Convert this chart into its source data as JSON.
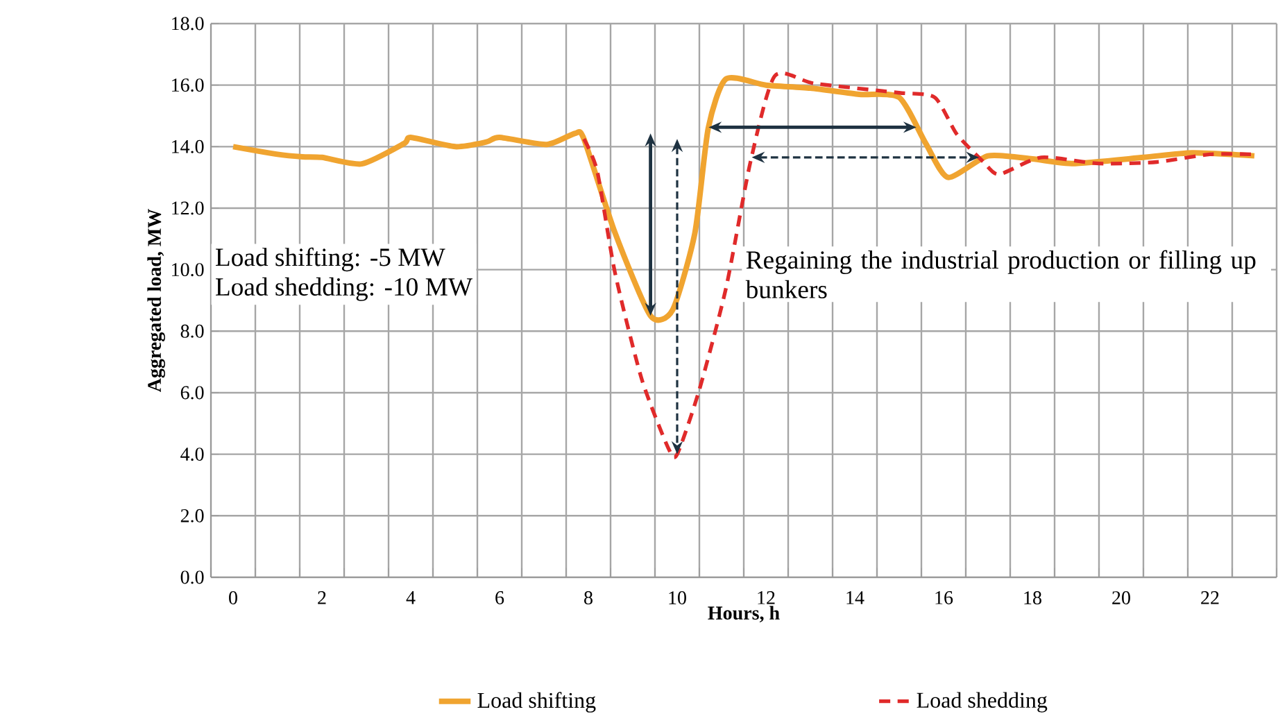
{
  "chart_data": {
    "type": "line",
    "xlabel": "Hours, h",
    "ylabel": "Aggregated load, MW",
    "x": [
      0,
      1,
      1.56,
      2,
      2.9,
      3.85,
      4,
      5,
      5.7,
      6,
      7.06,
      7.7,
      7.9,
      8.6,
      9.4,
      9.9,
      10.4,
      10.7,
      11.1,
      12,
      13,
      14.1,
      15,
      15.6,
      16.1,
      17,
      18,
      18.9,
      20.5,
      21.6,
      23
    ],
    "series": [
      {
        "name": "Load shifting",
        "color": "#f0a430",
        "line_style": "solid",
        "values": [
          14.0,
          13.75,
          13.67,
          13.65,
          13.44,
          14.1,
          14.3,
          14.0,
          14.15,
          14.3,
          14.07,
          14.43,
          14.25,
          11.2,
          8.5,
          8.7,
          11.2,
          14.6,
          16.2,
          16.0,
          15.9,
          15.7,
          15.6,
          14.1,
          13.0,
          13.7,
          13.6,
          13.45,
          13.65,
          13.8,
          13.7
        ]
      },
      {
        "name": "Load shedding",
        "color": "#e02a2a",
        "line_style": "dashed",
        "x": [
          7.9,
          8.2,
          8.6,
          9.2,
          9.8,
          10.0,
          10.5,
          11.1,
          11.65,
          12.2,
          13.1,
          15,
          15.8,
          16.3,
          16.9,
          17.25,
          18.2,
          19.5,
          20.8,
          22,
          23
        ],
        "values": [
          14.25,
          13.2,
          9.9,
          6.45,
          4.2,
          4.0,
          6.1,
          9.4,
          13.5,
          16.3,
          16.05,
          15.75,
          15.6,
          14.4,
          13.5,
          13.1,
          13.65,
          13.45,
          13.5,
          13.75,
          13.75
        ]
      }
    ],
    "xlim": [
      -0.5,
      23.5
    ],
    "xticks": [
      0,
      2,
      4,
      6,
      8,
      10,
      12,
      14,
      16,
      18,
      20,
      22,
      {
        "value": -0.5,
        "label": null
      },
      {
        "value": 0.5,
        "label": null
      },
      {
        "value": 1.5,
        "label": null
      },
      {
        "value": 2.5,
        "label": null
      },
      {
        "value": 3.5,
        "label": null
      },
      {
        "value": 4.5,
        "label": null
      },
      {
        "value": 5.5,
        "label": null
      },
      {
        "value": 6.5,
        "label": null
      },
      {
        "value": 7.5,
        "label": null
      },
      {
        "value": 8.5,
        "label": null
      },
      {
        "value": 9.5,
        "label": null
      },
      {
        "value": 10.5,
        "label": null
      },
      {
        "value": 11.5,
        "label": null
      },
      {
        "value": 12.5,
        "label": null
      },
      {
        "value": 13.5,
        "label": null
      },
      {
        "value": 14.5,
        "label": null
      },
      {
        "value": 15.5,
        "label": null
      },
      {
        "value": 16.5,
        "label": null
      },
      {
        "value": 17.5,
        "label": null
      },
      {
        "value": 18.5,
        "label": null
      },
      {
        "value": 19.5,
        "label": null
      },
      {
        "value": 20.5,
        "label": null
      },
      {
        "value": 21.5,
        "label": null
      },
      {
        "value": 22.5,
        "label": null
      },
      {
        "value": 23.5,
        "label": null
      }
    ],
    "ylim": [
      0,
      18
    ],
    "yticks": [
      {
        "value": 0,
        "label": "0.0"
      },
      {
        "value": 2,
        "label": "2.0"
      },
      {
        "value": 4,
        "label": "4.0"
      },
      {
        "value": 6,
        "label": "6.0"
      },
      {
        "value": 8,
        "label": "8.0"
      },
      {
        "value": 10,
        "label": "10.0"
      },
      {
        "value": 12,
        "label": "12.0"
      },
      {
        "value": 14,
        "label": "14.0"
      },
      {
        "value": 16,
        "label": "16.0"
      },
      {
        "value": 18,
        "label": "18.0"
      }
    ],
    "grid": true,
    "legend": "bottom",
    "marker": "none",
    "annotations": [
      "Load shifting: -5 MW",
      "Load shedding: -10 MW",
      "Regaining the industrial production or filling up bunkers"
    ]
  }
}
